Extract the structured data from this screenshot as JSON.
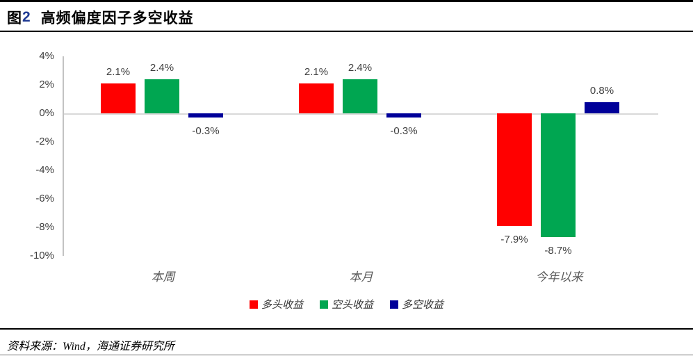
{
  "header": {
    "figure_prefix": "图",
    "figure_number": "2",
    "title": "高频偏度因子多空收益"
  },
  "footer": {
    "source_label": "资料来源：",
    "source_text": "Wind，海通证券研究所"
  },
  "colors": {
    "long_red": "#ff0000",
    "short_green": "#00a651",
    "longshort_navy": "#000099",
    "axis_line": "#c3c3c3",
    "zero_line": "#d9d9d9",
    "tick_text": "#404040",
    "category_text": "#595959"
  },
  "chart_data": {
    "type": "bar",
    "title": "高频偏度因子多空收益",
    "categories": [
      "本周",
      "本月",
      "今年以来"
    ],
    "series": [
      {
        "name": "多头收益",
        "color": "#ff0000",
        "values": [
          2.1,
          2.1,
          -7.9
        ],
        "labels": [
          "2.1%",
          "2.1%",
          "-7.9%"
        ]
      },
      {
        "name": "空头收益",
        "color": "#00a651",
        "values": [
          2.4,
          2.4,
          -8.7
        ],
        "labels": [
          "2.4%",
          "2.4%",
          "-8.7%"
        ]
      },
      {
        "name": "多空收益",
        "color": "#000099",
        "values": [
          -0.3,
          -0.3,
          0.8
        ],
        "labels": [
          "-0.3%",
          "-0.3%",
          "0.8%"
        ]
      }
    ],
    "y_ticks": [
      {
        "label": "4%",
        "value": 4
      },
      {
        "label": "2%",
        "value": 2
      },
      {
        "label": "0%",
        "value": 0
      },
      {
        "label": "-2%",
        "value": -2
      },
      {
        "label": "-4%",
        "value": -4
      },
      {
        "label": "-6%",
        "value": -6
      },
      {
        "label": "-8%",
        "value": -8
      },
      {
        "label": "-10%",
        "value": -10
      },
      {
        "label": "",
        "value": 0
      }
    ],
    "ylim": [
      -10,
      4
    ],
    "xlabel": "",
    "ylabel": "",
    "grid": "zero-line-only",
    "legend_position": "bottom"
  }
}
